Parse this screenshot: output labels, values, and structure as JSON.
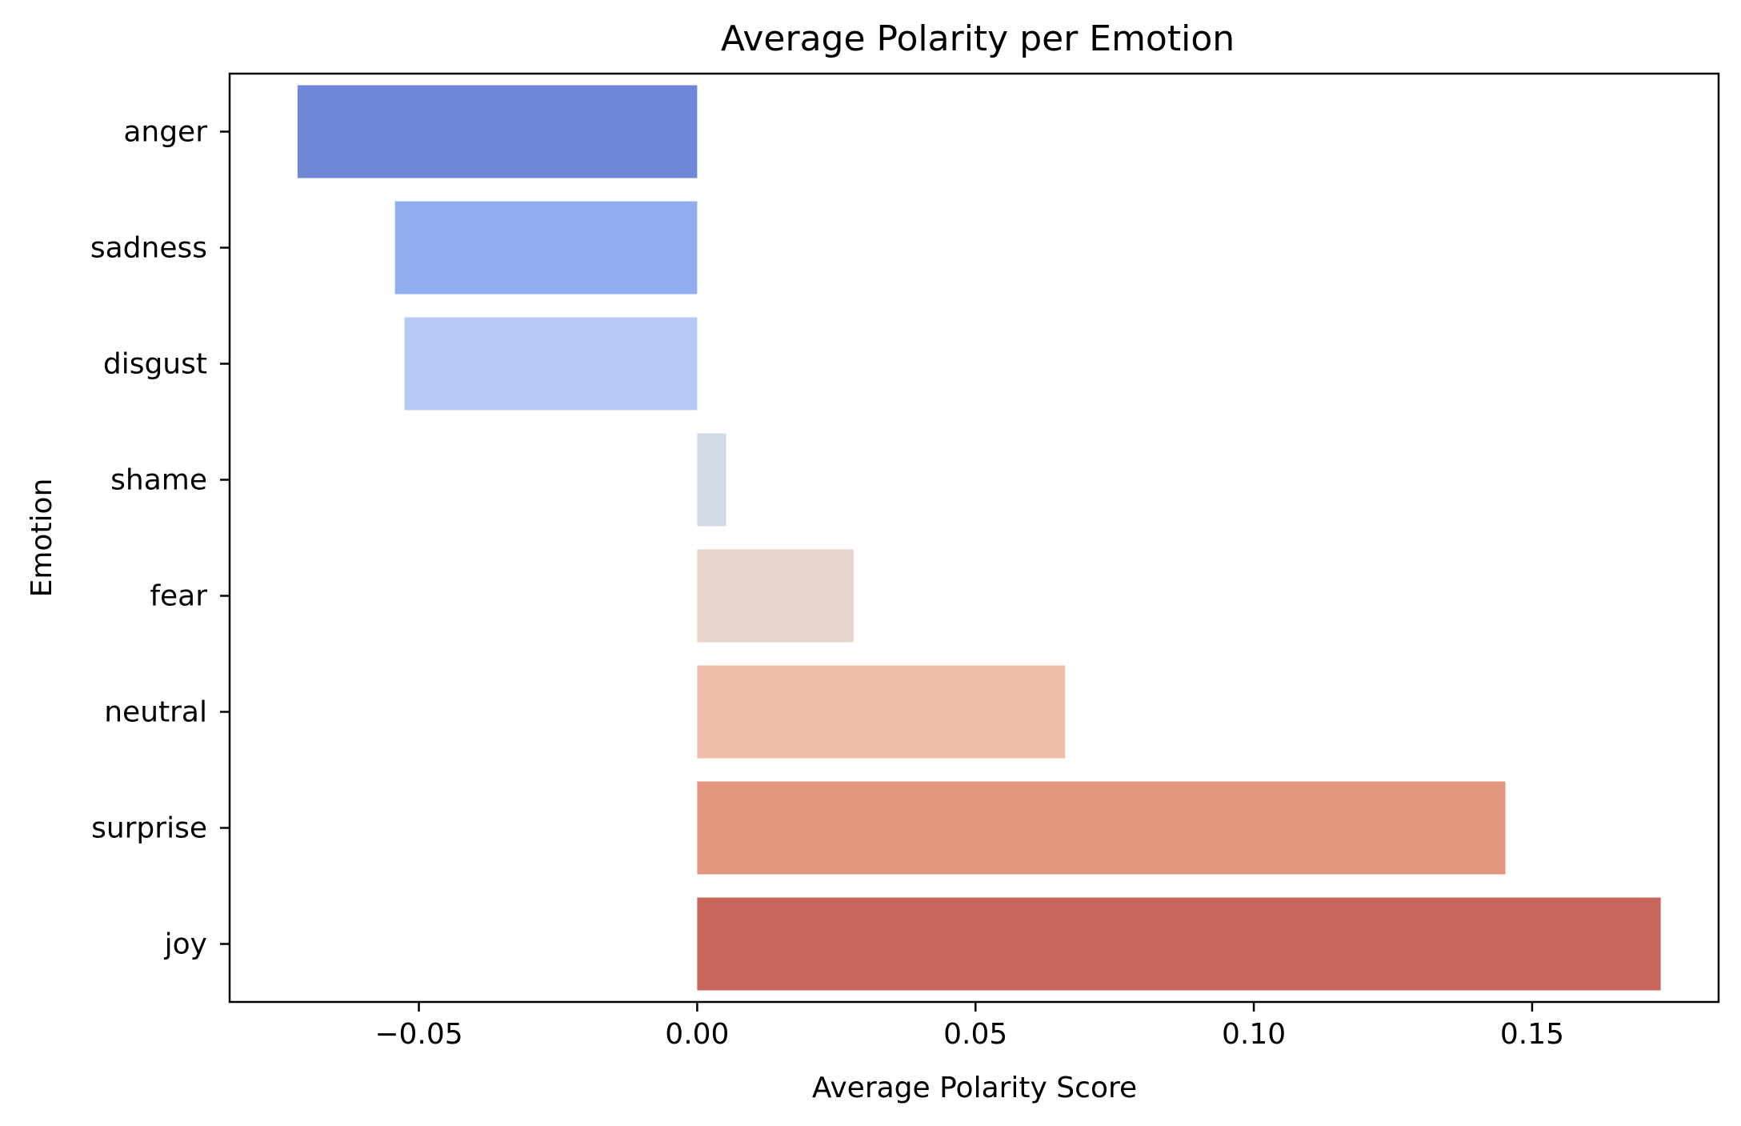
{
  "chart_data": {
    "type": "bar",
    "orientation": "horizontal",
    "title": "Average Polarity per Emotion",
    "xlabel": "Average Polarity Score",
    "ylabel": "Emotion",
    "xlim": [
      -0.084,
      0.1835
    ],
    "xticks": [
      -0.05,
      0.0,
      0.05,
      0.1,
      0.15
    ],
    "xtick_labels": [
      "−0.05",
      "0.00",
      "0.05",
      "0.10",
      "0.15"
    ],
    "categories": [
      "anger",
      "sadness",
      "disgust",
      "shame",
      "fear",
      "neutral",
      "surprise",
      "joy"
    ],
    "values": [
      -0.0718,
      -0.0543,
      -0.0526,
      0.0052,
      0.0281,
      0.0661,
      0.1452,
      0.1731
    ],
    "colors": [
      "#6f87d6",
      "#92adee",
      "#b6c9f4",
      "#d3dbe9",
      "#e7d5cc",
      "#eebca7",
      "#e2967e",
      "#c8665b"
    ],
    "grid": false,
    "legend": "none"
  }
}
